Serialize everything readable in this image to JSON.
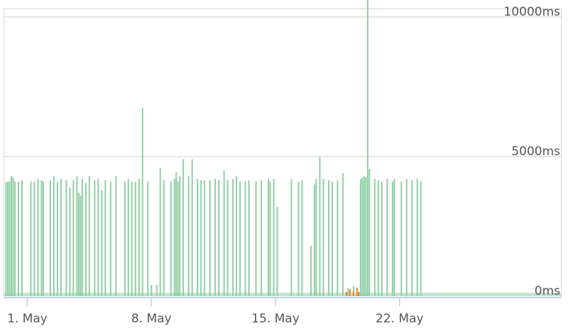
{
  "chart_data": {
    "type": "bar",
    "x_unit": "day of May",
    "y_unit": "ms",
    "ylim": [
      0,
      10300
    ],
    "xlim": [
      -1.3,
      30.1
    ],
    "grid": true,
    "y_ticks": [
      {
        "value": 0,
        "label": "0ms"
      },
      {
        "value": 5000,
        "label": "5000ms"
      },
      {
        "value": 10000,
        "label": "10000ms"
      }
    ],
    "x_ticks": [
      {
        "value": 0,
        "label": "1. May"
      },
      {
        "value": 7,
        "label": "8. May"
      },
      {
        "value": 14,
        "label": "15. May"
      },
      {
        "value": 21,
        "label": "22. May"
      }
    ],
    "series": [
      {
        "color": "#8fcfa3",
        "values": [
          [
            -1.2,
            4100
          ],
          [
            -1.1,
            4100
          ],
          [
            -1.0,
            4100
          ],
          [
            -0.9,
            4300
          ],
          [
            -0.8,
            4250
          ],
          [
            -0.7,
            4100
          ],
          [
            -0.5,
            4100
          ],
          [
            -0.3,
            4150
          ],
          [
            0.2,
            4100
          ],
          [
            0.4,
            4100
          ],
          [
            0.6,
            4200
          ],
          [
            0.8,
            4150
          ],
          [
            0.9,
            4100
          ],
          [
            1.3,
            4150
          ],
          [
            1.5,
            4300
          ],
          [
            1.7,
            4100
          ],
          [
            1.9,
            4200
          ],
          [
            2.2,
            4150
          ],
          [
            2.4,
            3900
          ],
          [
            2.6,
            4150
          ],
          [
            2.8,
            4300
          ],
          [
            2.9,
            3700
          ],
          [
            3.0,
            3600
          ],
          [
            3.1,
            4200
          ],
          [
            3.3,
            4050
          ],
          [
            3.5,
            4300
          ],
          [
            3.8,
            4150
          ],
          [
            4.0,
            4200
          ],
          [
            4.2,
            3800
          ],
          [
            4.4,
            4150
          ],
          [
            4.7,
            4100
          ],
          [
            5.0,
            4300
          ],
          [
            5.5,
            4100
          ],
          [
            5.7,
            4200
          ],
          [
            5.9,
            4100
          ],
          [
            6.1,
            4100
          ],
          [
            6.3,
            4200
          ],
          [
            6.5,
            6750
          ],
          [
            6.8,
            4100
          ],
          [
            7.0,
            400
          ],
          [
            7.3,
            400
          ],
          [
            7.5,
            4600
          ],
          [
            7.7,
            4150
          ],
          [
            8.1,
            4100
          ],
          [
            8.3,
            4200
          ],
          [
            8.4,
            4450
          ],
          [
            8.5,
            4100
          ],
          [
            8.6,
            4300
          ],
          [
            8.8,
            4900
          ],
          [
            9.1,
            4300
          ],
          [
            9.3,
            4900
          ],
          [
            9.6,
            4200
          ],
          [
            9.8,
            4150
          ],
          [
            10.0,
            4150
          ],
          [
            10.3,
            4150
          ],
          [
            10.6,
            4200
          ],
          [
            10.8,
            4150
          ],
          [
            11.1,
            4500
          ],
          [
            11.3,
            4150
          ],
          [
            11.6,
            4200
          ],
          [
            11.8,
            4300
          ],
          [
            12.0,
            4100
          ],
          [
            12.3,
            4100
          ],
          [
            12.5,
            4150
          ],
          [
            12.9,
            4100
          ],
          [
            13.2,
            4150
          ],
          [
            13.6,
            4200
          ],
          [
            13.7,
            4100
          ],
          [
            13.9,
            4200
          ],
          [
            14.1,
            3200
          ],
          [
            14.9,
            4200
          ],
          [
            15.3,
            4100
          ],
          [
            15.5,
            4150
          ],
          [
            16.0,
            1800
          ],
          [
            16.2,
            4000
          ],
          [
            16.3,
            4200
          ],
          [
            16.5,
            5000
          ],
          [
            16.7,
            4200
          ],
          [
            17.0,
            4150
          ],
          [
            17.2,
            4100
          ],
          [
            17.5,
            4150
          ],
          [
            17.8,
            4400
          ],
          [
            18.1,
            300
          ],
          [
            18.4,
            350
          ],
          [
            18.8,
            4200
          ],
          [
            18.9,
            4250
          ],
          [
            19.0,
            4300
          ],
          [
            19.1,
            4250
          ],
          [
            19.2,
            11300
          ],
          [
            19.3,
            4550
          ],
          [
            19.6,
            4200
          ],
          [
            19.8,
            4150
          ],
          [
            20.0,
            4100
          ],
          [
            20.3,
            4200
          ],
          [
            20.6,
            4100
          ],
          [
            20.7,
            4200
          ],
          [
            21.1,
            4100
          ],
          [
            21.4,
            4200
          ],
          [
            21.7,
            4150
          ],
          [
            22.0,
            4200
          ],
          [
            22.2,
            4100
          ]
        ]
      },
      {
        "color": "#f0802a",
        "values": [
          [
            18.0,
            150
          ],
          [
            18.2,
            250
          ],
          [
            18.4,
            180
          ],
          [
            18.6,
            300
          ],
          [
            18.7,
            150
          ]
        ]
      }
    ]
  }
}
